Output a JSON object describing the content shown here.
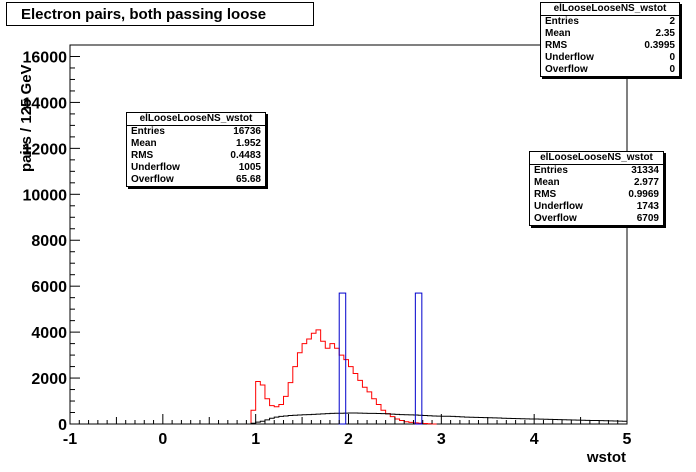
{
  "title": "Electron pairs, both passing loose",
  "chart_data": {
    "type": "histogram",
    "xlabel": "wstot",
    "ylabel": "pairs / 125 GeV",
    "xlim": [
      -1,
      5
    ],
    "ylim": [
      0,
      16500
    ],
    "x_ticks": [
      "-1",
      "0",
      "1",
      "2",
      "3",
      "4",
      "5"
    ],
    "y_ticks": [
      "0",
      "2000",
      "4000",
      "6000",
      "8000",
      "10000",
      "12000",
      "14000",
      "16000"
    ],
    "bin_width": 0.05,
    "series": [
      {
        "color": "#ff0000",
        "x_start": 0.9,
        "values": [
          0,
          600,
          1850,
          1700,
          1100,
          800,
          750,
          850,
          1200,
          1800,
          2500,
          3100,
          3500,
          3700,
          3950,
          4100,
          3600,
          3300,
          3500,
          3300,
          3000,
          2800,
          2500,
          2200,
          1900,
          1600,
          1400,
          1100,
          850,
          600,
          450,
          320,
          220,
          150,
          100,
          70,
          50,
          30,
          20,
          10,
          0
        ]
      },
      {
        "color": "#000000",
        "x_start": 0.9,
        "values": [
          0,
          30,
          80,
          120,
          180,
          250,
          300,
          330,
          350,
          370,
          380,
          390,
          400,
          410,
          420,
          430,
          440,
          450,
          460,
          470,
          470,
          475,
          480,
          480,
          475,
          470,
          465,
          460,
          455,
          450,
          440,
          430,
          420,
          410,
          400,
          395,
          390,
          380,
          370,
          360,
          350,
          345,
          340,
          335,
          330,
          320,
          310,
          300,
          295,
          290,
          285,
          280,
          270,
          265,
          260,
          250,
          245,
          240,
          235,
          230,
          225,
          220,
          215,
          210,
          205,
          200,
          195,
          190,
          185,
          180,
          175,
          170,
          165,
          160,
          155,
          150,
          145,
          140,
          135,
          130,
          125,
          120
        ]
      },
      {
        "color": "#0000cc",
        "bins": [
          [
            1.9,
            1.97,
            5700
          ],
          [
            2.72,
            2.79,
            5700
          ]
        ]
      }
    ]
  },
  "stats_boxes": [
    {
      "name": "elLooseLooseNS_wstot",
      "rows": [
        [
          "Entries",
          "16736"
        ],
        [
          "Mean",
          "1.952"
        ],
        [
          "RMS",
          "0.4483"
        ],
        [
          "Underflow",
          "1005"
        ],
        [
          "Overflow",
          "65.68"
        ]
      ]
    },
    {
      "name": "elLooseLooseNS_wstot",
      "rows": [
        [
          "Entries",
          "2"
        ],
        [
          "Mean",
          "2.35"
        ],
        [
          "RMS",
          "0.3995"
        ],
        [
          "Underflow",
          "0"
        ],
        [
          "Overflow",
          "0"
        ]
      ]
    },
    {
      "name": "elLooseLooseNS_wstot",
      "rows": [
        [
          "Entries",
          "31334"
        ],
        [
          "Mean",
          "2.977"
        ],
        [
          "RMS",
          "0.9969"
        ],
        [
          "Underflow",
          "1743"
        ],
        [
          "Overflow",
          "6709"
        ]
      ]
    }
  ]
}
